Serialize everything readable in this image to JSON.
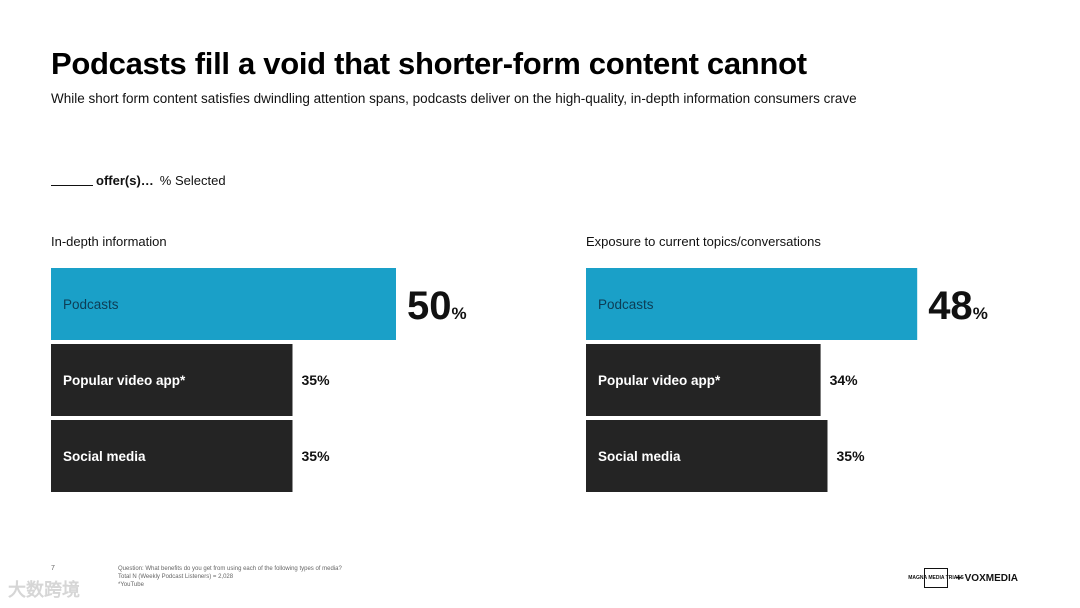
{
  "slide": {
    "title": "Podcasts fill a void that shorter-form content cannot",
    "subtitle": "While short form content satisfies dwindling attention spans, podcasts deliver on the high-quality, in-depth information consumers crave",
    "legend_prefix": "offer(s)…",
    "legend_suffix": "% Selected",
    "page_number": "7",
    "footnote_question": "Question: What benefits do you get from using each of the following types of media?",
    "footnote_total": "Total N (Weekly Podcast Listeners) = 2,028",
    "footnote_note": "*YouTube",
    "logo_left": "MAGNA MEDIA TRIALS",
    "logo_right": "+ VOXMEDIA",
    "watermark": "大数跨境"
  },
  "colors": {
    "highlight": "#1aa0c8",
    "dark": "#242424",
    "highlight_text": "#0d3d55",
    "dark_text": "#ffffff"
  },
  "chart_data": [
    {
      "type": "bar",
      "orientation": "horizontal",
      "title": "In-depth information",
      "categories": [
        "Podcasts",
        "Popular video app*",
        "Social media"
      ],
      "values": [
        50,
        35,
        35
      ],
      "unit": "%",
      "highlight_index": 0
    },
    {
      "type": "bar",
      "orientation": "horizontal",
      "title": "Exposure to current topics/conversations",
      "categories": [
        "Podcasts",
        "Popular video app*",
        "Social media"
      ],
      "values": [
        48,
        34,
        35
      ],
      "unit": "%",
      "highlight_index": 0
    }
  ]
}
